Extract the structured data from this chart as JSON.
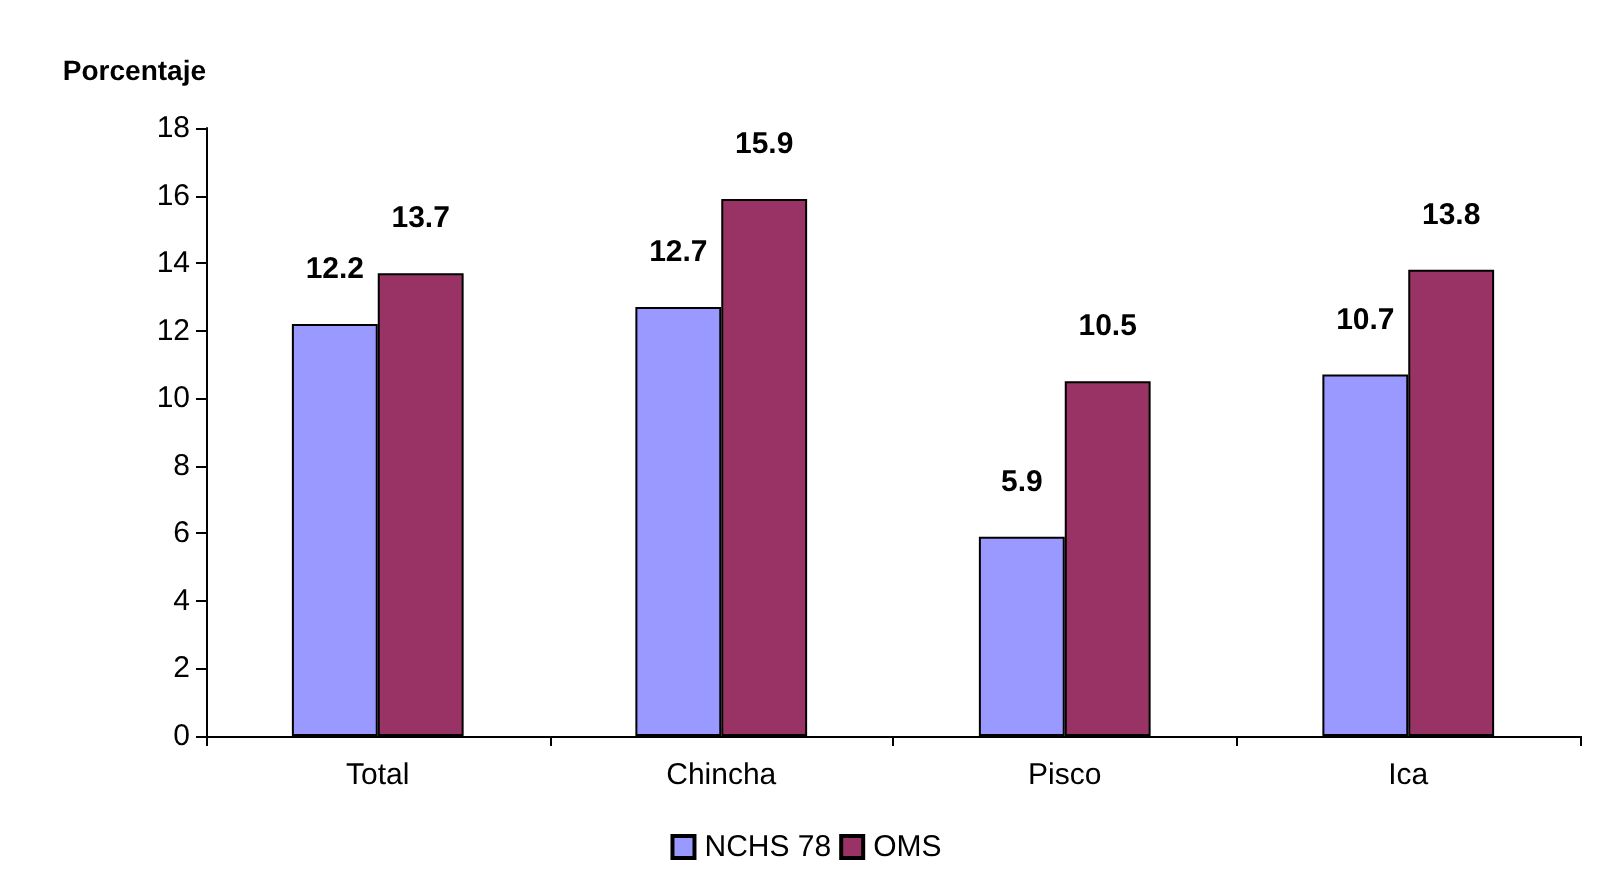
{
  "chart_data": {
    "type": "bar",
    "ylabel": "Porcentaje",
    "categories": [
      "Total",
      "Chincha",
      "Pisco",
      "Ica"
    ],
    "series": [
      {
        "name": "NCHS 78",
        "color": "#9999ff",
        "values": [
          12.2,
          12.7,
          5.9,
          10.7
        ]
      },
      {
        "name": "OMS",
        "color": "#993366",
        "values": [
          13.7,
          15.9,
          10.5,
          13.8
        ]
      }
    ],
    "ylim": [
      0,
      18
    ],
    "yticks": [
      0,
      2,
      4,
      6,
      8,
      10,
      12,
      14,
      16,
      18
    ],
    "grid": false,
    "legend": "bottom",
    "data_labels": true
  }
}
